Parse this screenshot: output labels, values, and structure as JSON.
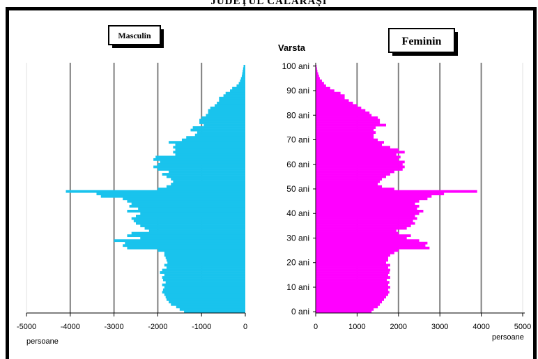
{
  "title": "JUDEŢUL CĂLĂRAŞI",
  "colors": {
    "male": "#19c3ed",
    "female": "#ff00ff",
    "grid": "#7f7f7f"
  },
  "chart_data": [
    {
      "type": "bar",
      "orientation": "horizontal",
      "series_label": "Masculin",
      "xlabel": "persoane",
      "xlim": [
        -5000,
        0
      ],
      "xticks": [
        -5000,
        -4000,
        -3000,
        -2000,
        -1000,
        0
      ],
      "xtick_labels": [
        "-5000",
        "-4000",
        "-3000",
        "-2000",
        "-1000",
        "0"
      ],
      "ages": [
        0,
        1,
        2,
        3,
        4,
        5,
        6,
        7,
        8,
        9,
        10,
        11,
        12,
        13,
        14,
        15,
        16,
        17,
        18,
        19,
        20,
        21,
        22,
        23,
        24,
        25,
        26,
        27,
        28,
        29,
        30,
        31,
        32,
        33,
        34,
        35,
        36,
        37,
        38,
        39,
        40,
        41,
        42,
        43,
        44,
        45,
        46,
        47,
        48,
        49,
        50,
        51,
        52,
        53,
        54,
        55,
        56,
        57,
        58,
        59,
        60,
        61,
        62,
        63,
        64,
        65,
        66,
        67,
        68,
        69,
        70,
        71,
        72,
        73,
        74,
        75,
        76,
        77,
        78,
        79,
        80,
        81,
        82,
        83,
        84,
        85,
        86,
        87,
        88,
        89,
        90,
        91,
        92,
        93,
        94,
        95,
        96,
        97,
        98,
        99,
        100
      ],
      "values": [
        -1400,
        -1500,
        -1580,
        -1700,
        -1750,
        -1800,
        -1820,
        -1850,
        -1900,
        -1880,
        -1850,
        -1900,
        -1820,
        -1880,
        -1900,
        -1850,
        -1950,
        -1900,
        -1800,
        -1850,
        -1780,
        -1800,
        -1820,
        -1850,
        -1850,
        -2000,
        -2700,
        -2800,
        -2750,
        -3000,
        -2400,
        -2700,
        -2600,
        -2200,
        -2300,
        -2400,
        -2500,
        -2550,
        -2600,
        -2500,
        -2400,
        -2700,
        -2450,
        -2650,
        -2600,
        -2700,
        -2800,
        -3300,
        -3400,
        -4100,
        -2000,
        -1800,
        -1700,
        -1650,
        -1700,
        -1800,
        -1900,
        -1750,
        -2000,
        -2100,
        -2000,
        -1950,
        -2100,
        -2050,
        -1600,
        -1650,
        -1600,
        -1650,
        -1600,
        -1750,
        -1450,
        -1350,
        -1150,
        -1100,
        -1250,
        -1200,
        -950,
        -1050,
        -1050,
        -1000,
        -900,
        -850,
        -850,
        -800,
        -700,
        -650,
        -600,
        -600,
        -500,
        -450,
        -350,
        -300,
        -200,
        -150,
        -120,
        -100,
        -80,
        -70,
        -60,
        -50,
        -40
      ]
    },
    {
      "type": "bar",
      "orientation": "horizontal",
      "series_label": "Feminin",
      "xlabel": "persoane",
      "ylabel": "Varsta",
      "xlim": [
        0,
        5000
      ],
      "xticks": [
        0,
        1000,
        2000,
        3000,
        4000,
        5000
      ],
      "xtick_labels": [
        "0",
        "1000",
        "2000",
        "3000",
        "4000",
        "5000"
      ],
      "yticks": [
        0,
        10,
        20,
        30,
        40,
        50,
        60,
        70,
        80,
        90,
        100
      ],
      "ytick_labels": [
        "0 ani",
        "10 ani",
        "20 ani",
        "30 ani",
        "40 ani",
        "50 ani",
        "60 ani",
        "70 ani",
        "80 ani",
        "90 ani",
        "100 ani"
      ],
      "ages": [
        0,
        1,
        2,
        3,
        4,
        5,
        6,
        7,
        8,
        9,
        10,
        11,
        12,
        13,
        14,
        15,
        16,
        17,
        18,
        19,
        20,
        21,
        22,
        23,
        24,
        25,
        26,
        27,
        28,
        29,
        30,
        31,
        32,
        33,
        34,
        35,
        36,
        37,
        38,
        39,
        40,
        41,
        42,
        43,
        44,
        45,
        46,
        47,
        48,
        49,
        50,
        51,
        52,
        53,
        54,
        55,
        56,
        57,
        58,
        59,
        60,
        61,
        62,
        63,
        64,
        65,
        66,
        67,
        68,
        69,
        70,
        71,
        72,
        73,
        74,
        75,
        76,
        77,
        78,
        79,
        80,
        81,
        82,
        83,
        84,
        85,
        86,
        87,
        88,
        89,
        90,
        91,
        92,
        93,
        94,
        95,
        96,
        97,
        98,
        99,
        100
      ],
      "values": [
        1350,
        1400,
        1500,
        1550,
        1600,
        1650,
        1700,
        1750,
        1780,
        1750,
        1800,
        1750,
        1780,
        1720,
        1800,
        1750,
        1780,
        1800,
        1750,
        1800,
        1700,
        1750,
        1750,
        1800,
        1900,
        2000,
        2750,
        2650,
        2700,
        2500,
        2200,
        2300,
        2000,
        1950,
        2200,
        2300,
        2400,
        2350,
        2450,
        2400,
        2500,
        2600,
        2450,
        2500,
        2400,
        2500,
        2700,
        2800,
        3100,
        3900,
        1900,
        1600,
        1500,
        1550,
        1600,
        1700,
        1800,
        1900,
        2100,
        2150,
        2100,
        2150,
        2000,
        2050,
        1950,
        2150,
        2000,
        1800,
        1600,
        1650,
        1500,
        1400,
        1400,
        1450,
        1400,
        1450,
        1700,
        1550,
        1550,
        1500,
        1350,
        1300,
        1200,
        1100,
        1000,
        900,
        800,
        700,
        700,
        600,
        450,
        350,
        250,
        200,
        150,
        100,
        80,
        60,
        40,
        30,
        20
      ]
    }
  ]
}
